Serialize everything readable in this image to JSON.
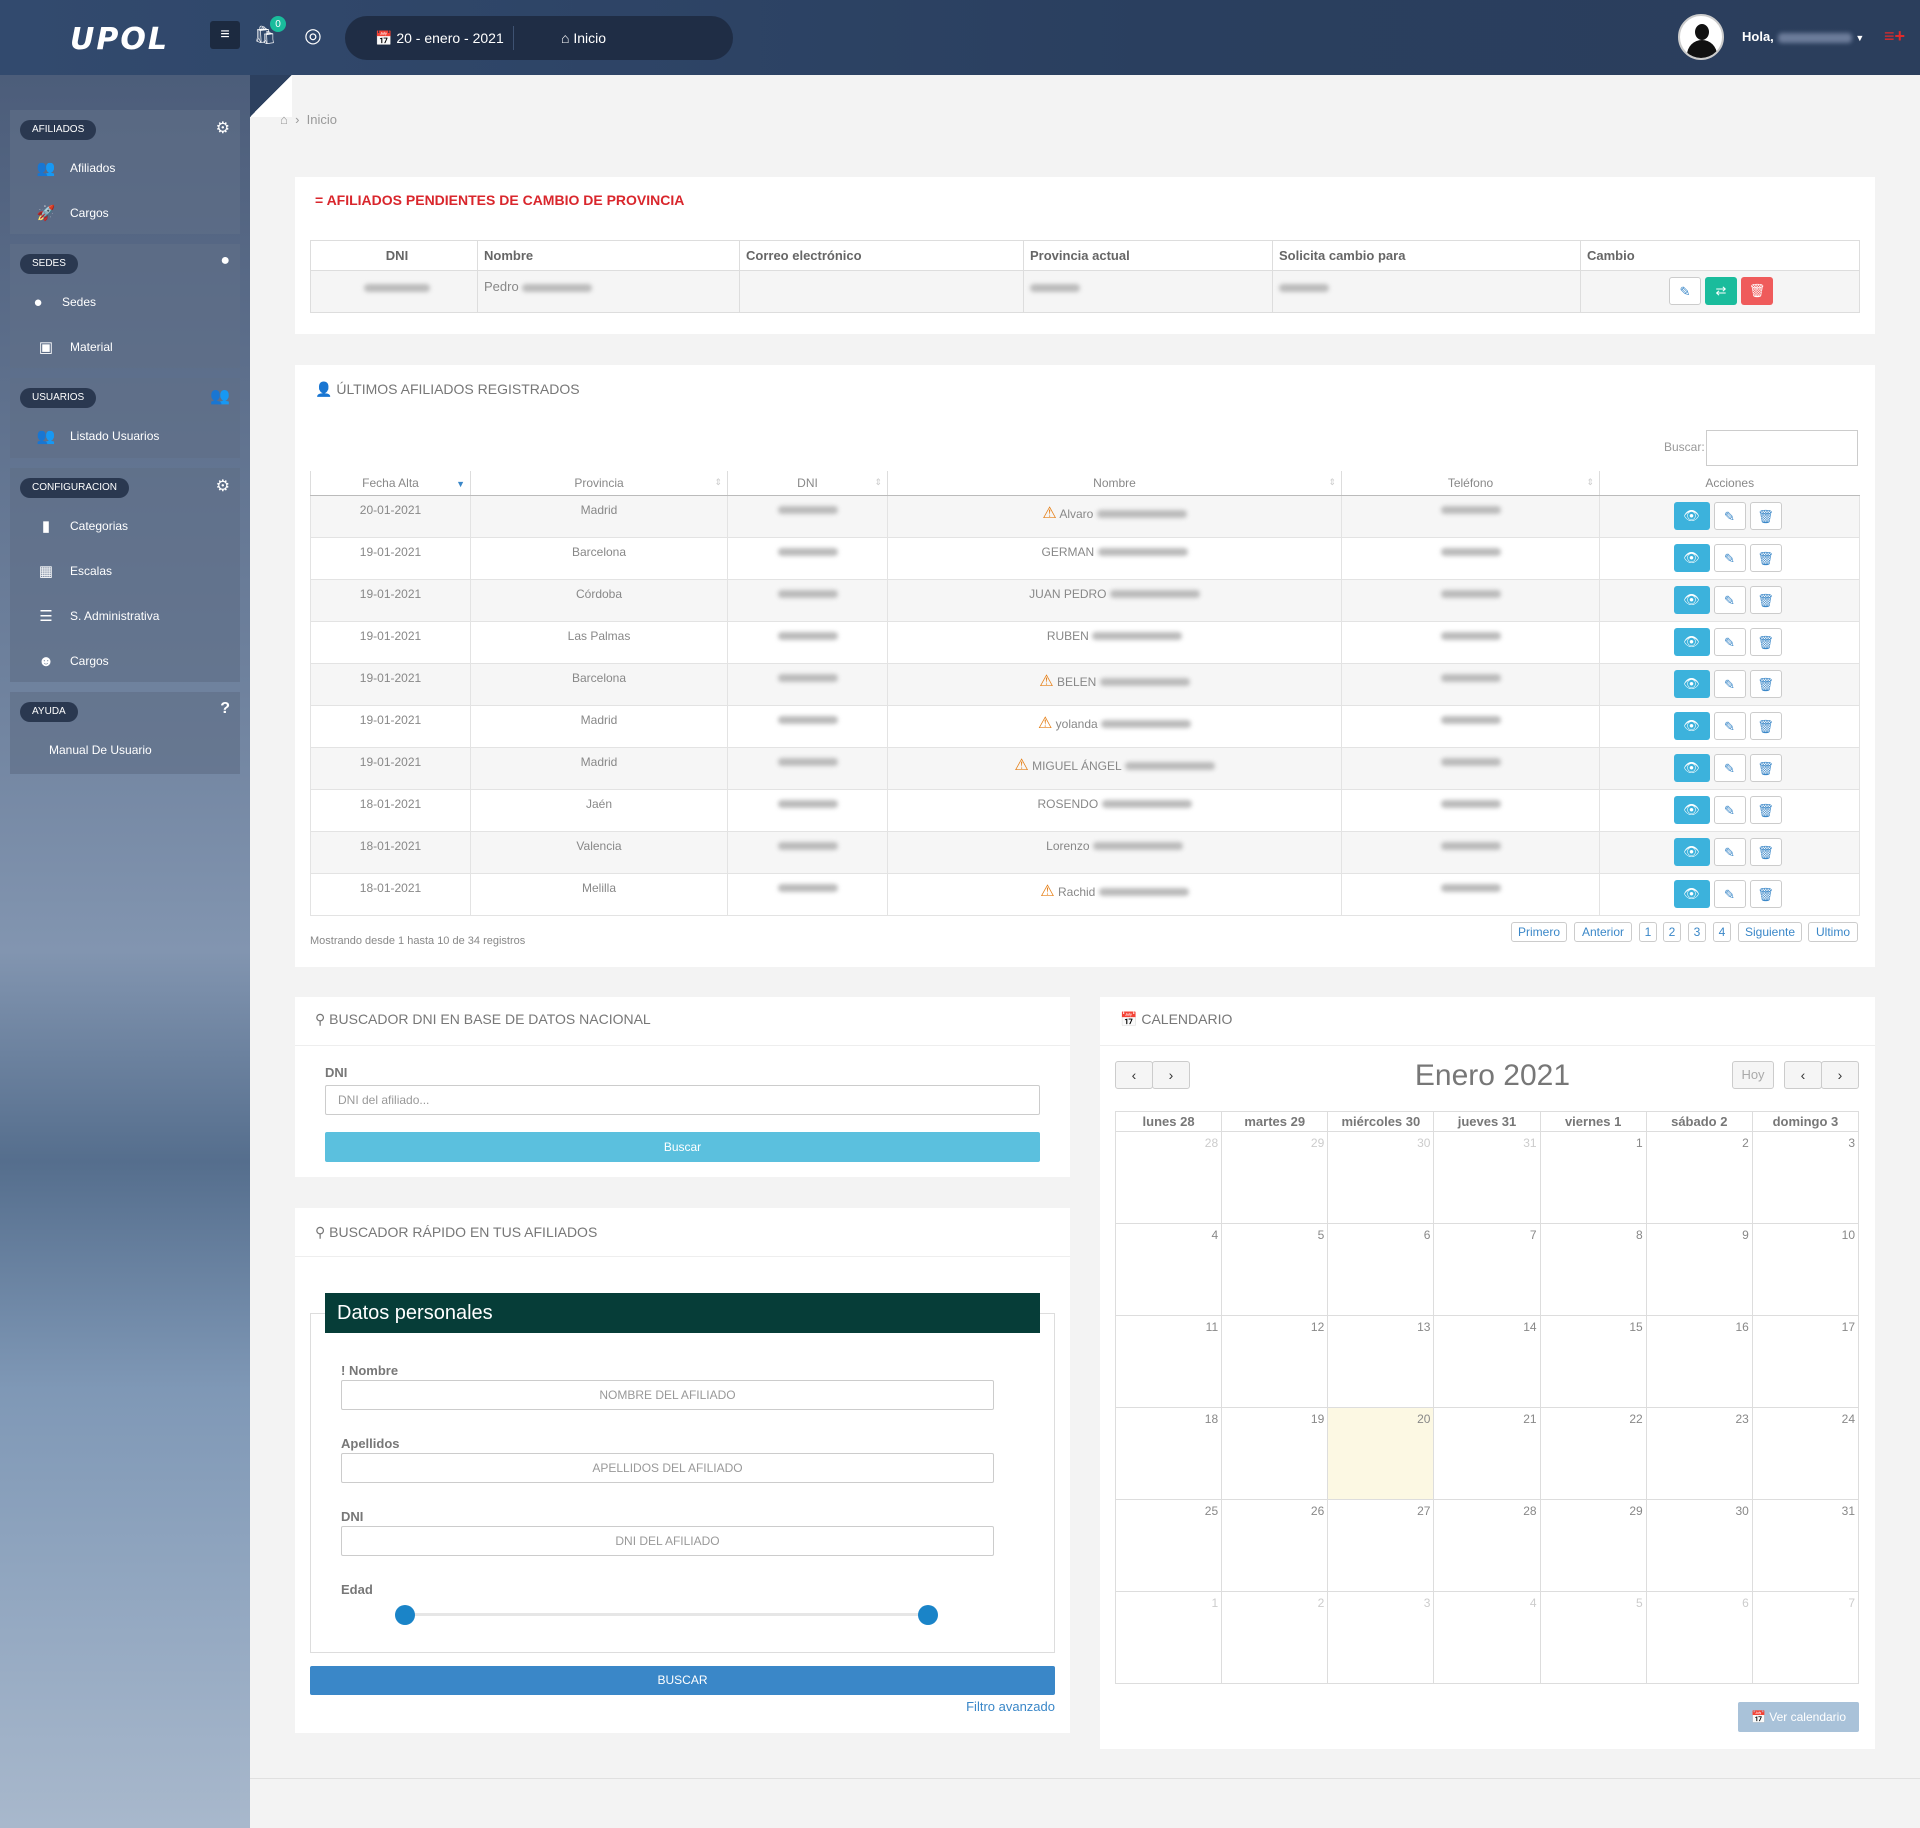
{
  "topbar": {
    "logo": "UPOL",
    "menu_icon": "menu-icon",
    "notif_count": "0",
    "date": "20 - enero - 2021",
    "home": "Inicio",
    "hello": "Hola,"
  },
  "sidebar": {
    "groups": [
      {
        "title": "AFILIADOS",
        "icon": "gear-icon",
        "items": [
          "Afiliados",
          "Cargos"
        ]
      },
      {
        "title": "SEDES",
        "icon": "map-pin-icon",
        "items": [
          "Sedes",
          "Material"
        ]
      },
      {
        "title": "USUARIOS",
        "icon": "users-icon",
        "items": [
          "Listado Usuarios"
        ]
      },
      {
        "title": "CONFIGURACION",
        "icon": "gear-icon",
        "items": [
          "Categorias",
          "Escalas",
          "S. Administrativa",
          "Cargos"
        ]
      },
      {
        "title": "AYUDA",
        "icon": "question-icon",
        "items": [
          "Manual De Usuario"
        ]
      }
    ]
  },
  "breadcrumb": {
    "current": "Inicio"
  },
  "pending": {
    "title": "AFILIADOS PENDIENTES DE CAMBIO DE PROVINCIA",
    "title_color": "#d9262c",
    "columns": [
      "DNI",
      "Nombre",
      "Correo electrónico",
      "Provincia actual",
      "Solicita cambio para",
      "Cambio"
    ],
    "row": {
      "nombre": "Pedro"
    }
  },
  "latest": {
    "title": "ÚLTIMOS AFILIADOS REGISTRADOS",
    "search_label": "Buscar:",
    "columns": [
      "Fecha Alta",
      "Provincia",
      "DNI",
      "Nombre",
      "Teléfono",
      "Acciones"
    ],
    "rows": [
      {
        "fecha": "20-01-2021",
        "provincia": "Madrid",
        "nombre": "Alvaro",
        "warn": true
      },
      {
        "fecha": "19-01-2021",
        "provincia": "Barcelona",
        "nombre": "GERMAN",
        "warn": false
      },
      {
        "fecha": "19-01-2021",
        "provincia": "Córdoba",
        "nombre": "JUAN PEDRO",
        "warn": false
      },
      {
        "fecha": "19-01-2021",
        "provincia": "Las Palmas",
        "nombre": "RUBEN",
        "warn": false
      },
      {
        "fecha": "19-01-2021",
        "provincia": "Barcelona",
        "nombre": "BELEN",
        "warn": true
      },
      {
        "fecha": "19-01-2021",
        "provincia": "Madrid",
        "nombre": "yolanda",
        "warn": true
      },
      {
        "fecha": "19-01-2021",
        "provincia": "Madrid",
        "nombre": "MIGUEL ÁNGEL",
        "warn": true
      },
      {
        "fecha": "18-01-2021",
        "provincia": "Jaén",
        "nombre": "ROSENDO",
        "warn": false
      },
      {
        "fecha": "18-01-2021",
        "provincia": "Valencia",
        "nombre": "Lorenzo",
        "warn": false
      },
      {
        "fecha": "18-01-2021",
        "provincia": "Melilla",
        "nombre": "Rachid",
        "warn": true
      }
    ],
    "info": "Mostrando desde 1 hasta 10 de 34 registros",
    "pagination": [
      "Primero",
      "Anterior",
      "1",
      "2",
      "3",
      "4",
      "Siguiente",
      "Ultimo"
    ]
  },
  "dni_search": {
    "title": "BUSCADOR DNI EN BASE DE DATOS NACIONAL",
    "label": "DNI",
    "placeholder": "DNI del afiliado...",
    "button": "Buscar"
  },
  "quick_search": {
    "title": "BUSCADOR RÁPIDO EN TUS AFILIADOS",
    "section": "Datos personales",
    "nombre_label": "! Nombre",
    "nombre_placeholder": "NOMBRE DEL AFILIADO",
    "apellidos_label": "Apellidos",
    "apellidos_placeholder": "APELLIDOS DEL AFILIADO",
    "dni_label": "DNI",
    "dni_placeholder": "DNI DEL AFILIADO",
    "edad_label": "Edad",
    "button": "BUSCAR",
    "advanced": "Filtro avanzado"
  },
  "calendar": {
    "title": "CALENDARIO",
    "month": "Enero 2021",
    "today_btn": "Hoy",
    "days": [
      "lunes 28",
      "martes 29",
      "miércoles 30",
      "jueves 31",
      "viernes 1",
      "sábado 2",
      "domingo 3"
    ],
    "weeks": [
      [
        "28",
        "29",
        "30",
        "31",
        "1",
        "2",
        "3"
      ],
      [
        "4",
        "5",
        "6",
        "7",
        "8",
        "9",
        "10"
      ],
      [
        "11",
        "12",
        "13",
        "14",
        "15",
        "16",
        "17"
      ],
      [
        "18",
        "19",
        "20",
        "21",
        "22",
        "23",
        "24"
      ],
      [
        "25",
        "26",
        "27",
        "28",
        "29",
        "30",
        "31"
      ],
      [
        "1",
        "2",
        "3",
        "4",
        "5",
        "6",
        "7"
      ]
    ],
    "today": "20",
    "view_btn": "Ver calendario"
  }
}
